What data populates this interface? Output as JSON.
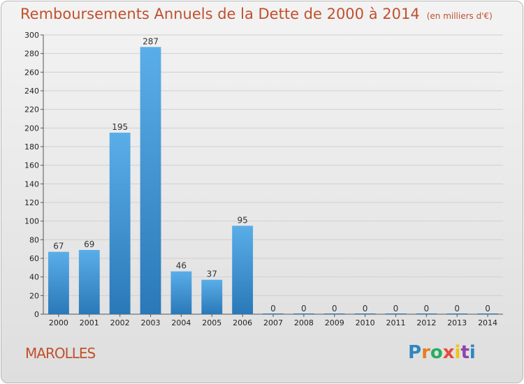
{
  "title": "Remboursements Annuels de la Dette de 2000 à 2014",
  "subtitle": "(en milliers d'€)",
  "commune": "MAROLLES",
  "logo": {
    "letters": [
      "P",
      "r",
      "o",
      "x",
      "i",
      "t",
      "i"
    ],
    "colors": [
      "#2e86c1",
      "#e67e22",
      "#27ae60",
      "#e74c3c",
      "#f1c40f",
      "#8e44ad",
      "#2e86c1"
    ]
  },
  "colors": {
    "bar_top": "#5aaee8",
    "bar_bottom": "#2a78b8",
    "text": "#c1502d",
    "grid": "#d0d0d0"
  },
  "chart_data": {
    "type": "bar",
    "categories": [
      "2000",
      "2001",
      "2002",
      "2003",
      "2004",
      "2005",
      "2006",
      "2007",
      "2008",
      "2009",
      "2010",
      "2011",
      "2012",
      "2013",
      "2014"
    ],
    "values": [
      67,
      69,
      195,
      287,
      46,
      37,
      95,
      0,
      0,
      0,
      0,
      0,
      0,
      0,
      0
    ],
    "ylim": [
      0,
      300
    ],
    "yticks": [
      0,
      20,
      40,
      60,
      80,
      100,
      120,
      140,
      160,
      180,
      200,
      220,
      240,
      260,
      280,
      300
    ],
    "grid": true
  }
}
